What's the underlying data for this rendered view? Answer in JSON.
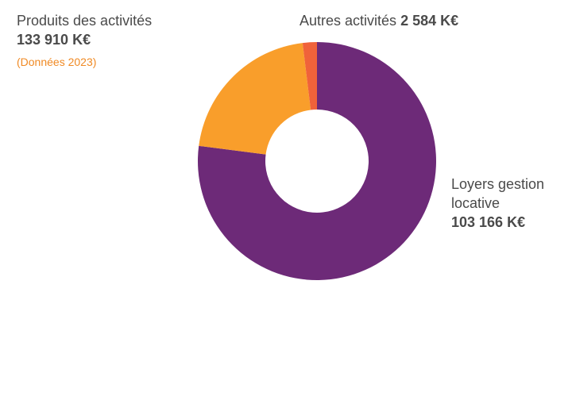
{
  "header": {
    "title": "Produits des activités",
    "total": "133 910 K€",
    "note": "(Données 2023)"
  },
  "colors": {
    "loyers": "#6d2a78",
    "activites_bis": "#f99e2b",
    "autres": "#f0623a",
    "hole": "#ffffff"
  },
  "chart_data": {
    "type": "pie",
    "variant": "donut",
    "title": "Produits des activités",
    "total": 133910,
    "unit": "K€",
    "slices": [
      {
        "label": "Loyers gestion locative",
        "value": 103166,
        "display_value": "103 166 K€",
        "color": "#6d2a78"
      },
      {
        "label": "",
        "value": 28160,
        "display_value": "",
        "color": "#f99e2b"
      },
      {
        "label": "Autres activités",
        "value": 2584,
        "display_value": "2 584 K€",
        "color": "#f0623a"
      }
    ]
  }
}
